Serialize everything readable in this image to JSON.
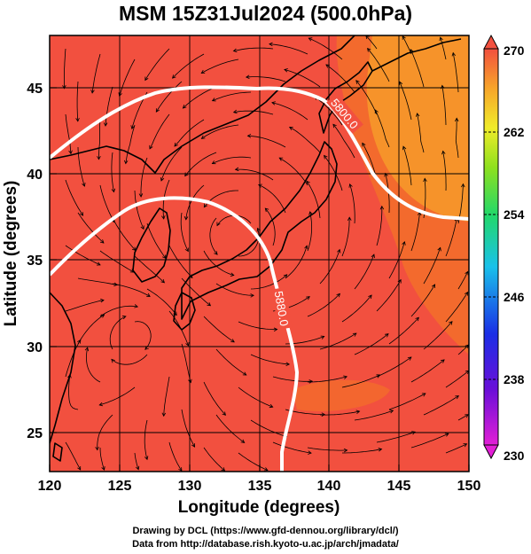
{
  "title": "MSM 15Z31Jul2024 (500.0hPa)",
  "footer": {
    "line1": "Drawing by DCL (https://www.gfd-dennou.org/library/dcl/)",
    "line2": "Data from http://database.rish.kyoto-u.ac.jp/arch/jmadata/"
  },
  "map": {
    "xlabel": "Longitude (degrees)",
    "ylabel": "Latitude  (degrees)",
    "xlim": [
      120,
      150
    ],
    "ylim": [
      22.4,
      47.6
    ],
    "xticks": [
      "120",
      "125",
      "130",
      "135",
      "140",
      "145",
      "150"
    ],
    "yticks": [
      "25",
      "30",
      "35",
      "40",
      "45"
    ],
    "contour_labels": [
      "5800.0",
      "5880.0"
    ],
    "colorbar_ticks": [
      "270",
      "262",
      "254",
      "246",
      "238",
      "230"
    ],
    "colors": {
      "field_main": "#f2503f",
      "field_warm": "#f36a2d",
      "field_orange": "#f6982a",
      "contour": "#ffffff",
      "streamline": "#000000"
    }
  }
}
